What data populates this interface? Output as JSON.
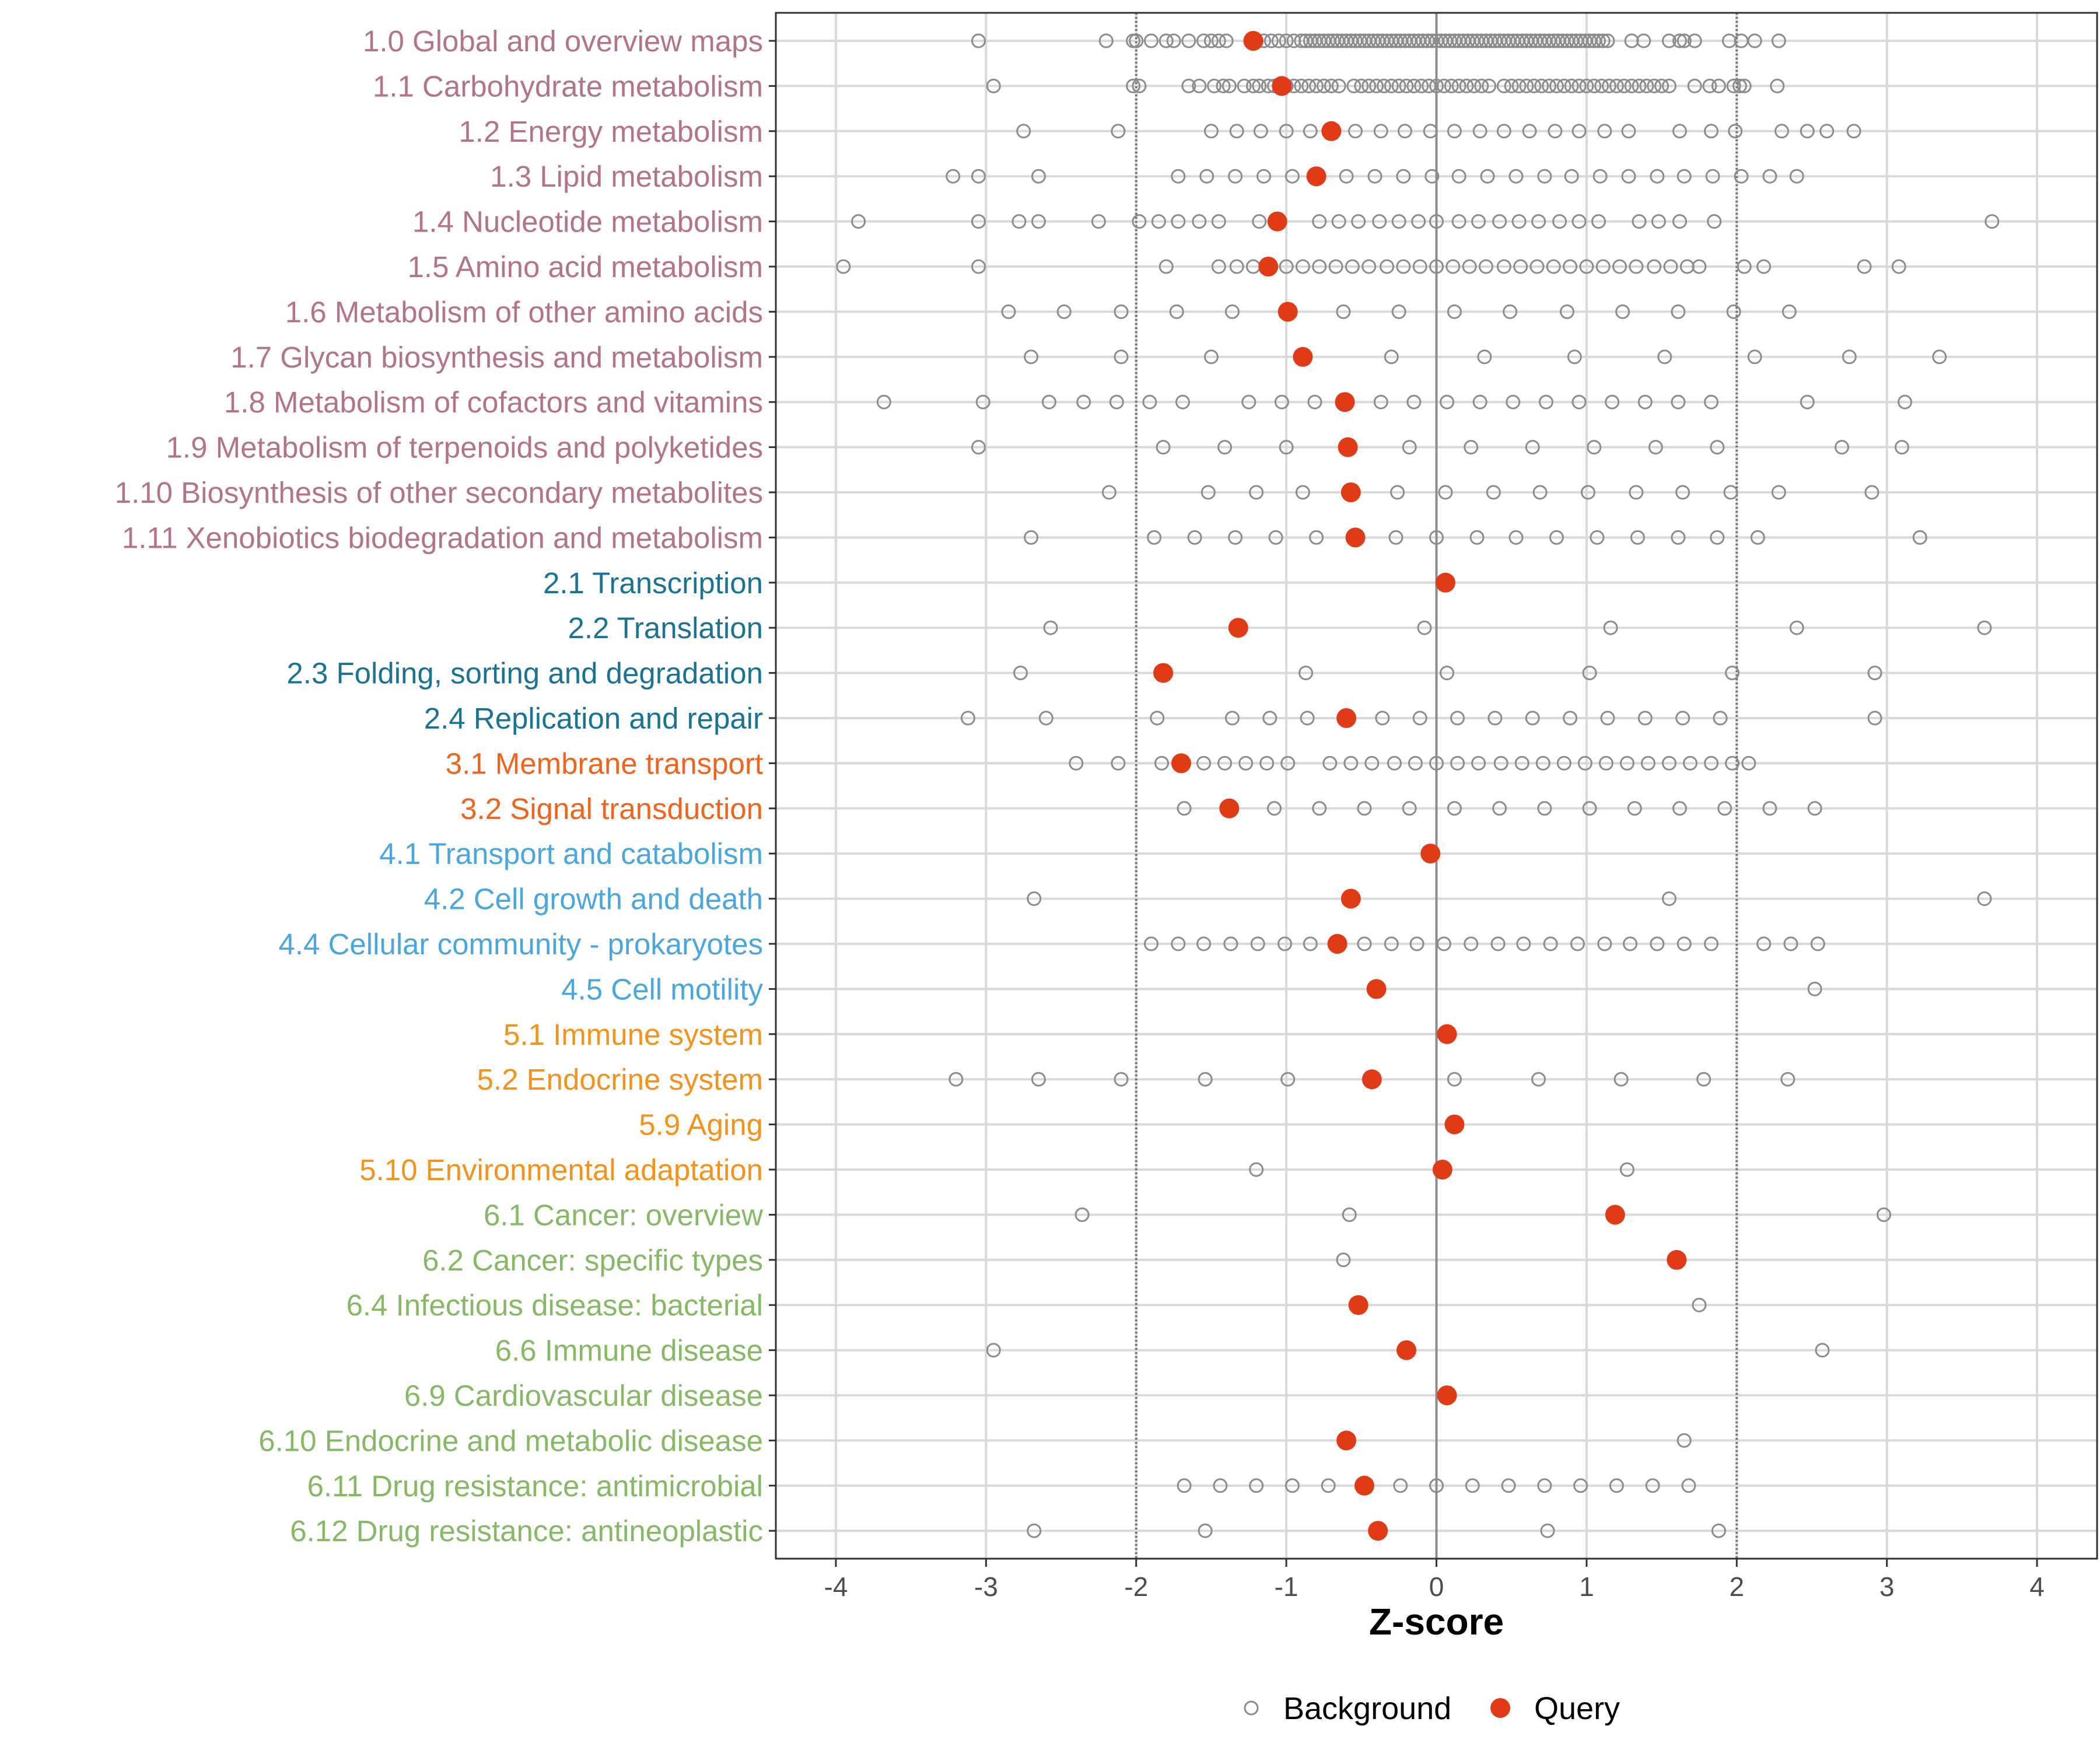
{
  "chart_data": {
    "type": "dotplot",
    "xlabel": "Z-score",
    "xlim": [
      -4.4,
      4.4
    ],
    "xticks": [
      -4,
      -3,
      -2,
      -1,
      0,
      1,
      2,
      3,
      4
    ],
    "xtick_labels": [
      "-4",
      "-3",
      "-2",
      "-1",
      "0",
      "1",
      "2",
      "3",
      "4"
    ],
    "reference_lines": [
      -2,
      0,
      2
    ],
    "legend": [
      {
        "label": "Background",
        "style": "open-circle",
        "color": "#8c8c8c"
      },
      {
        "label": "Query",
        "style": "filled-circle",
        "color": "#e03a17"
      }
    ],
    "group_colors": {
      "1": "#b27486",
      "2": "#1a7393",
      "3": "#f0641e",
      "4": "#4aa6dc",
      "5": "#f4921e",
      "6": "#86b866"
    },
    "rows": [
      {
        "label": "1.0 Global and overview maps",
        "group": "1",
        "query": -1.22,
        "background": [
          -3.05,
          -2.2,
          -2.02,
          -2.0,
          -1.9,
          -1.8,
          -1.75,
          -1.65,
          -1.55,
          -1.5,
          -1.45,
          -1.4,
          -1.2,
          -1.15,
          -1.1,
          -1.05,
          -1.0,
          -0.95,
          -0.9,
          -0.87,
          -0.84,
          -0.81,
          -0.78,
          -0.75,
          -0.72,
          -0.69,
          -0.66,
          -0.63,
          -0.6,
          -0.57,
          -0.54,
          -0.51,
          -0.48,
          -0.45,
          -0.42,
          -0.39,
          -0.36,
          -0.33,
          -0.3,
          -0.27,
          -0.24,
          -0.21,
          -0.18,
          -0.15,
          -0.12,
          -0.09,
          -0.06,
          -0.03,
          0.0,
          0.03,
          0.06,
          0.09,
          0.12,
          0.15,
          0.18,
          0.21,
          0.24,
          0.27,
          0.3,
          0.33,
          0.36,
          0.39,
          0.42,
          0.45,
          0.48,
          0.51,
          0.54,
          0.57,
          0.6,
          0.63,
          0.66,
          0.69,
          0.72,
          0.75,
          0.78,
          0.81,
          0.84,
          0.87,
          0.9,
          0.93,
          0.96,
          0.99,
          1.02,
          1.05,
          1.08,
          1.11,
          1.14,
          1.3,
          1.38,
          1.55,
          1.62,
          1.65,
          1.72,
          1.95,
          2.03,
          2.12,
          2.28
        ]
      },
      {
        "label": "1.1 Carbohydrate metabolism",
        "group": "1",
        "query": -1.03,
        "background": [
          -2.95,
          -2.02,
          -1.98,
          -1.65,
          -1.58,
          -1.48,
          -1.42,
          -1.38,
          -1.28,
          -1.22,
          -1.18,
          -1.12,
          -1.08,
          -1.0,
          -0.95,
          -0.9,
          -0.85,
          -0.8,
          -0.75,
          -0.7,
          -0.65,
          -0.55,
          -0.5,
          -0.45,
          -0.4,
          -0.35,
          -0.3,
          -0.25,
          -0.2,
          -0.15,
          -0.1,
          -0.05,
          0.0,
          0.05,
          0.1,
          0.15,
          0.2,
          0.25,
          0.3,
          0.35,
          0.45,
          0.5,
          0.55,
          0.6,
          0.65,
          0.7,
          0.75,
          0.8,
          0.85,
          0.9,
          0.95,
          1.0,
          1.05,
          1.1,
          1.15,
          1.2,
          1.25,
          1.3,
          1.35,
          1.4,
          1.45,
          1.5,
          1.55,
          1.72,
          1.82,
          1.88,
          1.98,
          2.02,
          2.05,
          2.27
        ]
      },
      {
        "label": "1.2 Energy metabolism",
        "group": "1",
        "query": -0.7,
        "background": [
          -2.75,
          -2.12,
          -1.5,
          -1.33,
          -1.17,
          -1.0,
          -0.84,
          -0.54,
          -0.37,
          -0.21,
          -0.04,
          0.12,
          0.29,
          0.45,
          0.62,
          0.79,
          0.95,
          1.12,
          1.28,
          1.62,
          1.83,
          1.99,
          2.3,
          2.47,
          2.6,
          2.78
        ]
      },
      {
        "label": "1.3 Lipid metabolism",
        "group": "1",
        "query": -0.8,
        "background": [
          -3.22,
          -3.05,
          -2.65,
          -1.72,
          -1.53,
          -1.34,
          -1.15,
          -0.96,
          -0.6,
          -0.41,
          -0.22,
          -0.03,
          0.15,
          0.34,
          0.53,
          0.72,
          0.9,
          1.09,
          1.28,
          1.47,
          1.65,
          1.84,
          2.03,
          2.22,
          2.4
        ]
      },
      {
        "label": "1.4 Nucleotide metabolism",
        "group": "1",
        "query": -1.06,
        "background": [
          -3.85,
          -3.05,
          -2.78,
          -2.65,
          -2.25,
          -1.98,
          -1.85,
          -1.72,
          -1.58,
          -1.45,
          -1.18,
          -0.78,
          -0.65,
          -0.52,
          -0.38,
          -0.25,
          -0.12,
          0.0,
          0.15,
          0.28,
          0.42,
          0.55,
          0.68,
          0.82,
          0.95,
          1.08,
          1.35,
          1.48,
          1.62,
          1.85,
          3.7
        ]
      },
      {
        "label": "1.5 Amino acid metabolism",
        "group": "1",
        "query": -1.12,
        "background": [
          -3.95,
          -3.05,
          -1.8,
          -1.45,
          -1.33,
          -1.22,
          -1.0,
          -0.89,
          -0.78,
          -0.67,
          -0.56,
          -0.45,
          -0.33,
          -0.22,
          -0.11,
          0.0,
          0.11,
          0.22,
          0.33,
          0.45,
          0.56,
          0.67,
          0.78,
          0.89,
          1.0,
          1.11,
          1.22,
          1.33,
          1.45,
          1.56,
          1.67,
          1.75,
          2.05,
          2.18,
          2.85,
          3.08
        ]
      },
      {
        "label": "1.6 Metabolism of other amino acids",
        "group": "1",
        "query": -0.99,
        "background": [
          -2.85,
          -2.48,
          -2.1,
          -1.73,
          -1.36,
          -0.62,
          -0.25,
          0.12,
          0.49,
          0.87,
          1.24,
          1.61,
          1.98,
          2.35
        ]
      },
      {
        "label": "1.7 Glycan biosynthesis and metabolism",
        "group": "1",
        "query": -0.89,
        "background": [
          -2.7,
          -2.1,
          -1.5,
          -0.3,
          0.32,
          0.92,
          1.52,
          2.12,
          2.75,
          3.35
        ]
      },
      {
        "label": "1.8 Metabolism of cofactors and vitamins",
        "group": "1",
        "query": -0.61,
        "background": [
          -3.68,
          -3.02,
          -2.58,
          -2.35,
          -2.13,
          -1.91,
          -1.69,
          -1.25,
          -1.03,
          -0.81,
          -0.37,
          -0.15,
          0.07,
          0.29,
          0.51,
          0.73,
          0.95,
          1.17,
          1.39,
          1.61,
          1.83,
          2.47,
          3.12
        ]
      },
      {
        "label": "1.9 Metabolism of terpenoids and polyketides",
        "group": "1",
        "query": -0.59,
        "background": [
          -3.05,
          -1.82,
          -1.41,
          -1.0,
          -0.18,
          0.23,
          0.64,
          1.05,
          1.46,
          1.87,
          2.7,
          3.1
        ]
      },
      {
        "label": "1.10 Biosynthesis of other secondary metabolites",
        "group": "1",
        "query": -0.57,
        "background": [
          -2.18,
          -1.52,
          -1.2,
          -0.89,
          -0.26,
          0.06,
          0.38,
          0.69,
          1.01,
          1.33,
          1.64,
          1.96,
          2.28,
          2.9
        ]
      },
      {
        "label": "1.11 Xenobiotics biodegradation and metabolism",
        "group": "1",
        "query": -0.54,
        "background": [
          -2.7,
          -1.88,
          -1.61,
          -1.34,
          -1.07,
          -0.8,
          -0.27,
          0.0,
          0.27,
          0.53,
          0.8,
          1.07,
          1.34,
          1.61,
          1.87,
          2.14,
          3.22
        ]
      },
      {
        "label": "2.1 Transcription",
        "group": "2",
        "query": 0.06,
        "background": []
      },
      {
        "label": "2.2 Translation",
        "group": "2",
        "query": -1.32,
        "background": [
          -2.57,
          -0.08,
          1.16,
          2.4,
          3.65
        ]
      },
      {
        "label": "2.3 Folding, sorting and degradation",
        "group": "2",
        "query": -1.82,
        "background": [
          -2.77,
          -0.87,
          0.07,
          1.02,
          1.97,
          2.92
        ]
      },
      {
        "label": "2.4 Replication and repair",
        "group": "2",
        "query": -0.6,
        "background": [
          -3.12,
          -2.6,
          -1.86,
          -1.36,
          -1.11,
          -0.86,
          -0.36,
          -0.11,
          0.14,
          0.39,
          0.64,
          0.89,
          1.14,
          1.39,
          1.64,
          1.89,
          2.92
        ]
      },
      {
        "label": "3.1 Membrane transport",
        "group": "3",
        "query": -1.7,
        "background": [
          -2.4,
          -2.12,
          -1.83,
          -1.55,
          -1.41,
          -1.27,
          -1.13,
          -0.99,
          -0.71,
          -0.57,
          -0.43,
          -0.28,
          -0.14,
          0.0,
          0.14,
          0.28,
          0.43,
          0.57,
          0.71,
          0.85,
          0.99,
          1.13,
          1.27,
          1.41,
          1.55,
          1.69,
          1.83,
          1.97,
          2.08
        ]
      },
      {
        "label": "3.2 Signal transduction",
        "group": "3",
        "query": -1.38,
        "background": [
          -1.68,
          -1.08,
          -0.78,
          -0.48,
          -0.18,
          0.12,
          0.42,
          0.72,
          1.02,
          1.32,
          1.62,
          1.92,
          2.22,
          2.52
        ]
      },
      {
        "label": "4.1 Transport and catabolism",
        "group": "4",
        "query": -0.04,
        "background": []
      },
      {
        "label": "4.2 Cell growth and death",
        "group": "4",
        "query": -0.57,
        "background": [
          -2.68,
          1.55,
          3.65
        ]
      },
      {
        "label": "4.4 Cellular community - prokaryotes",
        "group": "4",
        "query": -0.66,
        "background": [
          -1.9,
          -1.72,
          -1.55,
          -1.37,
          -1.19,
          -1.01,
          -0.84,
          -0.48,
          -0.3,
          -0.13,
          0.05,
          0.23,
          0.41,
          0.58,
          0.76,
          0.94,
          1.12,
          1.29,
          1.47,
          1.65,
          1.83,
          2.18,
          2.36,
          2.54
        ]
      },
      {
        "label": "4.5 Cell motility",
        "group": "4",
        "query": -0.4,
        "background": [
          2.52
        ]
      },
      {
        "label": "5.1 Immune system",
        "group": "5",
        "query": 0.07,
        "background": []
      },
      {
        "label": "5.2 Endocrine system",
        "group": "5",
        "query": -0.43,
        "background": [
          -3.2,
          -2.65,
          -2.1,
          -1.54,
          -0.99,
          0.12,
          0.68,
          1.23,
          1.78,
          2.34
        ]
      },
      {
        "label": "5.9 Aging",
        "group": "5",
        "query": 0.12,
        "background": []
      },
      {
        "label": "5.10 Environmental adaptation",
        "group": "5",
        "query": 0.04,
        "background": [
          -1.2,
          1.27
        ]
      },
      {
        "label": "6.1 Cancer: overview",
        "group": "6",
        "query": 1.19,
        "background": [
          -2.36,
          -0.58,
          2.98
        ]
      },
      {
        "label": "6.2 Cancer: specific types",
        "group": "6",
        "query": 1.6,
        "background": [
          -0.62
        ]
      },
      {
        "label": "6.4 Infectious disease: bacterial",
        "group": "6",
        "query": -0.52,
        "background": [
          1.75
        ]
      },
      {
        "label": "6.6 Immune disease",
        "group": "6",
        "query": -0.2,
        "background": [
          -2.95,
          2.57
        ]
      },
      {
        "label": "6.9 Cardiovascular disease",
        "group": "6",
        "query": 0.07,
        "background": []
      },
      {
        "label": "6.10 Endocrine and metabolic disease",
        "group": "6",
        "query": -0.6,
        "background": [
          1.65
        ]
      },
      {
        "label": "6.11 Drug resistance: antimicrobial",
        "group": "6",
        "query": -0.48,
        "background": [
          -1.68,
          -1.44,
          -1.2,
          -0.96,
          -0.72,
          -0.24,
          0.0,
          0.24,
          0.48,
          0.72,
          0.96,
          1.2,
          1.44,
          1.68
        ]
      },
      {
        "label": "6.12 Drug resistance: antineoplastic",
        "group": "6",
        "query": -0.39,
        "background": [
          -2.68,
          -1.54,
          0.74,
          1.88
        ]
      }
    ]
  }
}
